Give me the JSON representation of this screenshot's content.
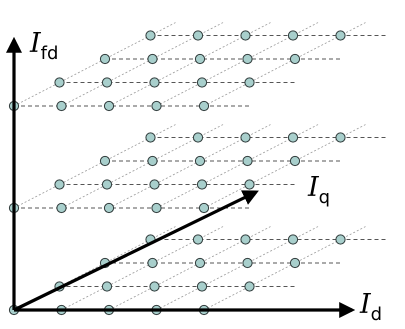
{
  "axes": {
    "fd": {
      "base": "I",
      "sub": "fd"
    },
    "q": {
      "base": "I",
      "sub": "q"
    },
    "d": {
      "base": "I",
      "sub": "d"
    }
  },
  "colors": {
    "node_fill": "#a8cfcc",
    "node_stroke": "#2f3a3a",
    "axis": "#000000",
    "dashed_line": "#555555",
    "dotted_line": "#9a9a9a"
  }
}
